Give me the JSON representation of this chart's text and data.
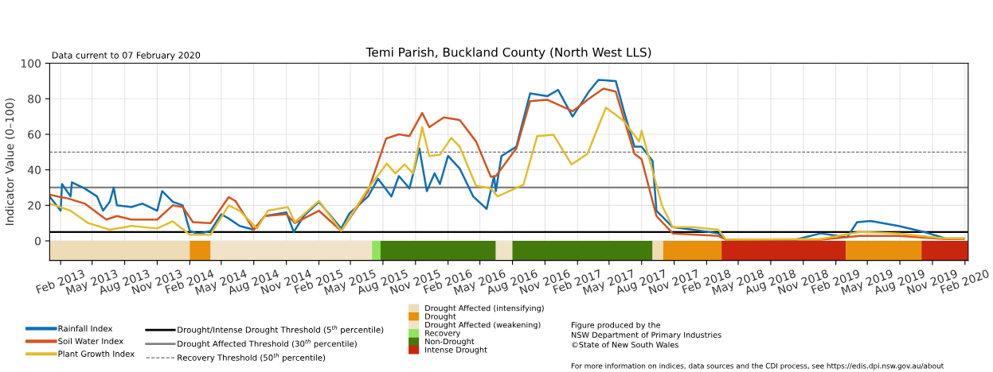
{
  "chart_data": {
    "type": "line",
    "title": "Temi Parish, Buckland County (North West LLS)",
    "ylabel": "Indicator Value (0–100)",
    "annotations": [
      "Data current to 07 February 2020",
      "Figure produced by the\nNSW Department of Primary Industries\n©State of New South Wales",
      "For more information on indices, data sources and the CDI process, see https://edis.dpi.nsw.gov.au/about"
    ],
    "series": [
      {
        "name": "Rainfall Index",
        "color": "#0e6fb5",
        "x": [
          "2013-01-01",
          "2013-02-01",
          "2013-02-05",
          "2013-03-01",
          "2013-03-05",
          "2013-04-10",
          "2013-05-15",
          "2013-06-01",
          "2013-06-20",
          "2013-07-01",
          "2013-07-10",
          "2013-08-20",
          "2013-09-20",
          "2013-11-01",
          "2013-11-15",
          "2013-12-15",
          "2014-01-12",
          "2014-02-01",
          "2014-02-25",
          "2014-04-01",
          "2014-05-01",
          "2014-05-22",
          "2014-06-22",
          "2014-08-01",
          "2014-09-01",
          "2014-11-01",
          "2014-11-22",
          "2014-12-20",
          "2015-02-01",
          "2015-04-05",
          "2015-04-28",
          "2015-06-20",
          "2015-07-18",
          "2015-08-25",
          "2015-09-15",
          "2015-10-15",
          "2015-11-12",
          "2015-12-03",
          "2015-12-25",
          "2016-01-09",
          "2016-02-01",
          "2016-03-05",
          "2016-04-12",
          "2016-05-20",
          "2016-06-10",
          "2016-06-15",
          "2016-07-01",
          "2016-08-12",
          "2016-09-20",
          "2016-11-08",
          "2016-12-08",
          "2017-01-18",
          "2017-03-05",
          "2017-04-01",
          "2017-05-20",
          "2017-06-12",
          "2017-07-12",
          "2017-08-01",
          "2017-09-01",
          "2017-09-12",
          "2017-10-28",
          "2017-12-25",
          "2018-03-06",
          "2018-03-28",
          "2018-10-10",
          "2018-12-20",
          "2019-03-05",
          "2019-04-02",
          "2019-05-10",
          "2019-07-28",
          "2019-10-10",
          "2019-12-07",
          "2020-01-28"
        ],
        "values": [
          25,
          17,
          32,
          25,
          33,
          29.5,
          25,
          17,
          22,
          30,
          20,
          19,
          21,
          17,
          28,
          22,
          20,
          5.6,
          4,
          5.6,
          15,
          12.6,
          8.4,
          6.3,
          14,
          16,
          5,
          14,
          22,
          7,
          15.4,
          25,
          35,
          25,
          36.5,
          29.5,
          52,
          28,
          38,
          32,
          47.8,
          40.7,
          25,
          18,
          36.5,
          28,
          47.8,
          53,
          83,
          81.5,
          85,
          70,
          84,
          90.6,
          90,
          73,
          53,
          53,
          45,
          17,
          7.7,
          6.3,
          4.2,
          0.7,
          0.7,
          4.2,
          2.1,
          10.5,
          11.2,
          8.4,
          4.9,
          1.4,
          1.4
        ]
      },
      {
        "name": "Soil Water Index",
        "color": "#d4541e",
        "x": [
          "2013-01-01",
          "2013-02-01",
          "2013-02-20",
          "2013-04-10",
          "2013-06-10",
          "2013-07-10",
          "2013-08-20",
          "2013-11-01",
          "2013-12-15",
          "2014-01-12",
          "2014-02-10",
          "2014-04-01",
          "2014-05-22",
          "2014-06-10",
          "2014-08-01",
          "2014-09-01",
          "2014-11-01",
          "2014-11-25",
          "2015-02-01",
          "2015-04-05",
          "2015-06-20",
          "2015-08-10",
          "2015-09-15",
          "2015-10-15",
          "2015-11-20",
          "2015-12-10",
          "2016-01-20",
          "2016-03-05",
          "2016-04-20",
          "2016-06-01",
          "2016-06-15",
          "2016-08-12",
          "2016-09-20",
          "2016-11-08",
          "2017-01-18",
          "2017-03-05",
          "2017-04-15",
          "2017-05-20",
          "2017-07-12",
          "2017-08-01",
          "2017-09-12",
          "2017-10-28",
          "2018-03-06",
          "2018-03-28",
          "2018-12-20",
          "2019-04-10",
          "2019-07-28",
          "2019-12-07",
          "2020-01-28"
        ],
        "values": [
          26,
          24.6,
          24,
          21,
          12,
          14,
          12,
          12,
          20,
          19,
          10.5,
          10,
          24.6,
          22.5,
          6.3,
          14,
          15,
          10,
          17,
          5.6,
          28,
          57.6,
          60,
          59,
          72,
          64,
          69.5,
          68,
          56,
          36,
          36.5,
          52,
          78.7,
          79.4,
          73,
          80,
          85.7,
          84,
          49,
          46,
          14,
          4.2,
          2.8,
          0.7,
          0.7,
          2.8,
          2.8,
          1,
          1
        ]
      },
      {
        "name": "Plant Growth Index",
        "color": "#e2bd2c",
        "x": [
          "2013-01-01",
          "2013-03-01",
          "2013-04-20",
          "2013-06-20",
          "2013-08-20",
          "2013-11-01",
          "2013-12-15",
          "2014-02-01",
          "2014-02-25",
          "2014-04-01",
          "2014-05-22",
          "2014-06-22",
          "2014-08-10",
          "2014-09-10",
          "2014-11-05",
          "2014-11-25",
          "2015-02-01",
          "2015-04-05",
          "2015-06-20",
          "2015-08-12",
          "2015-09-05",
          "2015-10-01",
          "2015-10-25",
          "2015-11-20",
          "2015-12-10",
          "2016-01-09",
          "2016-02-10",
          "2016-03-05",
          "2016-04-20",
          "2016-06-01",
          "2016-06-20",
          "2016-09-01",
          "2016-10-10",
          "2016-11-25",
          "2017-01-15",
          "2017-03-01",
          "2017-04-22",
          "2017-05-20",
          "2017-06-12",
          "2017-07-25",
          "2017-08-01",
          "2017-09-28",
          "2017-10-28",
          "2017-12-25",
          "2018-03-06",
          "2018-03-28",
          "2018-12-20",
          "2019-04-10",
          "2019-07-28",
          "2019-12-07",
          "2020-01-28"
        ],
        "values": [
          21,
          17,
          10,
          6.3,
          8.4,
          7,
          11,
          3.5,
          3.5,
          3.5,
          20,
          17,
          7,
          17,
          19,
          10.5,
          22.5,
          5.6,
          29.5,
          43.5,
          38,
          43,
          38,
          64,
          47.8,
          48.5,
          58,
          53,
          31,
          29.5,
          25,
          31.6,
          59,
          59.7,
          43,
          49,
          75,
          71,
          67.4,
          56,
          62,
          19.7,
          7.7,
          7.7,
          6.3,
          0.7,
          1,
          5,
          4.2,
          1.4,
          1.4
        ]
      }
    ],
    "ylim": [
      -11,
      100
    ],
    "yticks": [
      0,
      20,
      40,
      60,
      80,
      100
    ],
    "xlim": [
      "2013-01-01",
      "2020-02-10"
    ],
    "xticks": [
      {
        "value": "2013-02-01",
        "label": "Feb 2013"
      },
      {
        "value": "2013-05-01",
        "label": "May 2013"
      },
      {
        "value": "2013-08-01",
        "label": "Aug 2013"
      },
      {
        "value": "2013-11-01",
        "label": "Nov 2013"
      },
      {
        "value": "2014-02-01",
        "label": "Feb 2014"
      },
      {
        "value": "2014-05-01",
        "label": "May 2014"
      },
      {
        "value": "2014-08-01",
        "label": "Aug 2014"
      },
      {
        "value": "2014-11-01",
        "label": "Nov 2014"
      },
      {
        "value": "2015-02-01",
        "label": "Feb 2015"
      },
      {
        "value": "2015-05-01",
        "label": "May 2015"
      },
      {
        "value": "2015-08-01",
        "label": "Aug 2015"
      },
      {
        "value": "2015-11-01",
        "label": "Nov 2015"
      },
      {
        "value": "2016-02-01",
        "label": "Feb 2016"
      },
      {
        "value": "2016-05-01",
        "label": "May 2016"
      },
      {
        "value": "2016-08-01",
        "label": "Aug 2016"
      },
      {
        "value": "2016-11-01",
        "label": "Nov 2016"
      },
      {
        "value": "2017-02-01",
        "label": "Feb 2017"
      },
      {
        "value": "2017-05-01",
        "label": "May 2017"
      },
      {
        "value": "2017-08-01",
        "label": "Aug 2017"
      },
      {
        "value": "2017-11-01",
        "label": "Nov 2017"
      },
      {
        "value": "2018-02-01",
        "label": "Feb 2018"
      },
      {
        "value": "2018-05-01",
        "label": "May 2018"
      },
      {
        "value": "2018-08-01",
        "label": "Aug 2018"
      },
      {
        "value": "2018-11-01",
        "label": "Nov 2018"
      },
      {
        "value": "2019-02-01",
        "label": "Feb 2019"
      },
      {
        "value": "2019-05-01",
        "label": "May 2019"
      },
      {
        "value": "2019-08-01",
        "label": "Aug 2019"
      },
      {
        "value": "2019-11-01",
        "label": "Nov 2019"
      },
      {
        "value": "2020-02-01",
        "label": "Feb 2020"
      }
    ],
    "ref_lines": [
      {
        "axis": "y",
        "value": 5,
        "label": "Drought/Intense Drought Threshold (5$^{th}$ percentile)",
        "color": "#000000",
        "line_style": "solid"
      },
      {
        "axis": "y",
        "value": 30,
        "label": "Drought Affected Threshold (30$^{th}$ percentile)",
        "color": "#808080",
        "line_style": "solid"
      },
      {
        "axis": "y",
        "value": 50,
        "label": "Recovery Threshold (50$^{th}$ percentile)",
        "color": "#707070",
        "line_style": "dashed"
      }
    ],
    "bands": [
      {
        "axis": "x",
        "from": "2013-01-01",
        "to": "2014-02-01",
        "label": "Drought Affected (intensifying)",
        "color": "#eddcb5"
      },
      {
        "axis": "x",
        "from": "2014-02-01",
        "to": "2014-04-01",
        "label": "Drought",
        "color": "#e8900c"
      },
      {
        "axis": "x",
        "from": "2014-04-01",
        "to": "2015-07-01",
        "label": "Drought Affected (weakening)",
        "color": "#f1e3c8"
      },
      {
        "axis": "x",
        "from": "2015-07-01",
        "to": "2015-07-25",
        "label": "Recovery",
        "color": "#8fe45e"
      },
      {
        "axis": "x",
        "from": "2015-07-25",
        "to": "2016-06-15",
        "label": "Non-Drought",
        "color": "#437a0c"
      },
      {
        "axis": "x",
        "from": "2016-06-15",
        "to": "2016-08-01",
        "color": "#f1e3c8"
      },
      {
        "axis": "x",
        "from": "2016-08-01",
        "to": "2017-09-01",
        "color": "#437a0c"
      },
      {
        "axis": "x",
        "from": "2017-09-01",
        "to": "2017-10-01",
        "color": "#eddcb5"
      },
      {
        "axis": "x",
        "from": "2017-10-01",
        "to": "2018-03-15",
        "color": "#e8900c"
      },
      {
        "axis": "x",
        "from": "2018-03-15",
        "to": "2019-03-01",
        "label": "Intense Drought",
        "color": "#c8260e"
      },
      {
        "axis": "x",
        "from": "2019-03-01",
        "to": "2019-10-01",
        "color": "#e8900c"
      },
      {
        "axis": "x",
        "from": "2019-10-01",
        "to": "2020-02-10",
        "color": "#c8260e"
      }
    ],
    "grid": true,
    "legend": "bottom",
    "line_style": "solid",
    "marker": "none"
  }
}
